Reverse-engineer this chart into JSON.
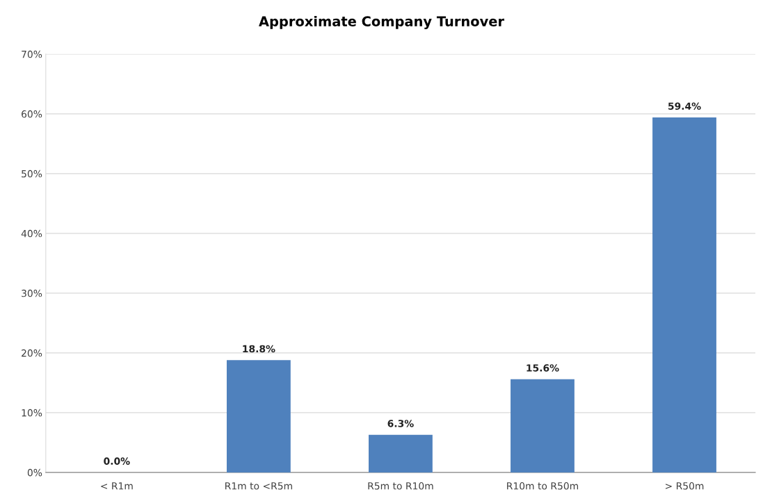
{
  "chart_data": {
    "type": "bar",
    "title": "Approximate Company Turnover",
    "categories": [
      "< R1m",
      "R1m to <R5m",
      "R5m to R10m",
      "R10m to R50m",
      "> R50m"
    ],
    "values": [
      0.0,
      18.8,
      6.3,
      15.6,
      59.4
    ],
    "value_labels": [
      "0.0%",
      "18.8%",
      "6.3%",
      "15.6%",
      "59.4%"
    ],
    "color": "#4f81bd",
    "ylim": [
      0,
      70
    ],
    "yticks": [
      {
        "value": 0,
        "label": "0%"
      },
      {
        "value": 10,
        "label": "10%"
      },
      {
        "value": 20,
        "label": "20%"
      },
      {
        "value": 30,
        "label": "30%"
      },
      {
        "value": 40,
        "label": "40%"
      },
      {
        "value": 50,
        "label": "50%"
      },
      {
        "value": 60,
        "label": "60%"
      },
      {
        "value": 70,
        "label": "70%"
      }
    ],
    "grid": "y"
  }
}
